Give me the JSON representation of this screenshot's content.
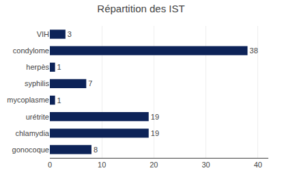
{
  "chart_data": {
    "type": "bar",
    "title": "Répartition des IST",
    "categories": [
      "VIH",
      "condylome",
      "herpès",
      "syphilis",
      "mycoplasme",
      "urétrite",
      "chlamydia",
      "gonocoque"
    ],
    "values": [
      3,
      38,
      1,
      7,
      1,
      19,
      19,
      8
    ],
    "color": "#0d2358",
    "orientation": "horizontal",
    "data_labels": true,
    "xlim": [
      0,
      42
    ],
    "xticks": [
      0,
      10,
      20,
      30,
      40
    ],
    "grid": true
  }
}
